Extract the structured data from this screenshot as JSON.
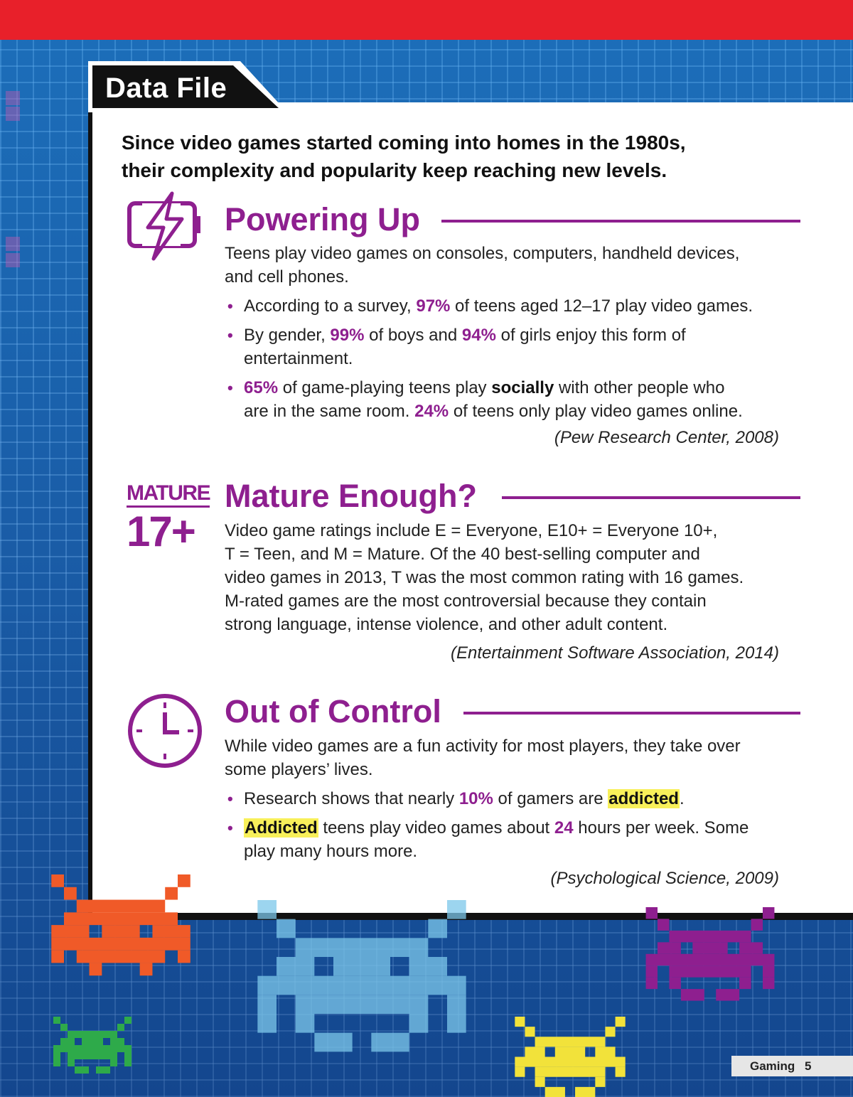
{
  "header": {
    "tab_title": "Data File"
  },
  "intro": {
    "line1": "Since video games started coming into homes in the 1980s,",
    "line2": "their complexity and popularity keep reaching new levels."
  },
  "sections": [
    {
      "title": "Powering Up",
      "icon": "battery-charging-icon",
      "intro_line1": "Teens play video games on consoles, computers, handheld devices,",
      "intro_line2": "and cell phones.",
      "bullet1": {
        "a": "According to a survey, ",
        "stat": "97%",
        "b": " of teens aged 12–17 play video games."
      },
      "bullet2": {
        "a": "By gender, ",
        "stat1": "99%",
        "b": " of boys and ",
        "stat2": "94%",
        "c": " of girls enjoy this form of",
        "d": "entertainment."
      },
      "bullet3": {
        "stat1": "65%",
        "a": " of game-playing teens play ",
        "bold": "socially",
        "b": " with other people who",
        "c": "are in the same room. ",
        "stat2": "24%",
        "d": " of teens only play video games online."
      },
      "source": "(Pew Research Center, 2008)"
    },
    {
      "title": "Mature Enough?",
      "icon": "mature-rating-icon",
      "rating_word": "MATURE",
      "rating_age": "17+",
      "lines": [
        "Video game ratings include E = Everyone, E10+ = Everyone 10+,",
        "T = Teen, and M = Mature. Of the 40 best-selling computer and",
        "video games in 2013, T was the most common rating with 16 games.",
        "M-rated games are the most controversial because they contain",
        "strong language, intense violence, and other adult content."
      ],
      "source": "(Entertainment Software Association, 2014)"
    },
    {
      "title": "Out of Control",
      "icon": "clock-icon",
      "intro_line1": "While video games are a fun activity for most players, they take over",
      "intro_line2": "some players’ lives.",
      "bullet1": {
        "a": "Research shows that nearly ",
        "stat": "10%",
        "b": " of gamers are ",
        "mark": "addicted",
        "c": "."
      },
      "bullet2": {
        "mark": "Addicted",
        "a": " teens play video games about ",
        "stat": "24",
        "b": " hours per week. Some",
        "c": "play many hours more."
      },
      "source": "(Psychological Science, 2009)"
    }
  ],
  "bullet_glyph": "•",
  "footer": {
    "label": "Gaming",
    "page": "5"
  },
  "colors": {
    "accent_purple": "#8e1f8f",
    "top_band_red": "#e8202a",
    "highlight_yellow": "#f8f05a",
    "background_blue": "#1b5fa8"
  },
  "decor": [
    "orange-space-invader-icon",
    "light-blue-space-invader-icon",
    "purple-space-invader-icon",
    "green-space-invader-icon",
    "yellow-space-invader-icon"
  ]
}
